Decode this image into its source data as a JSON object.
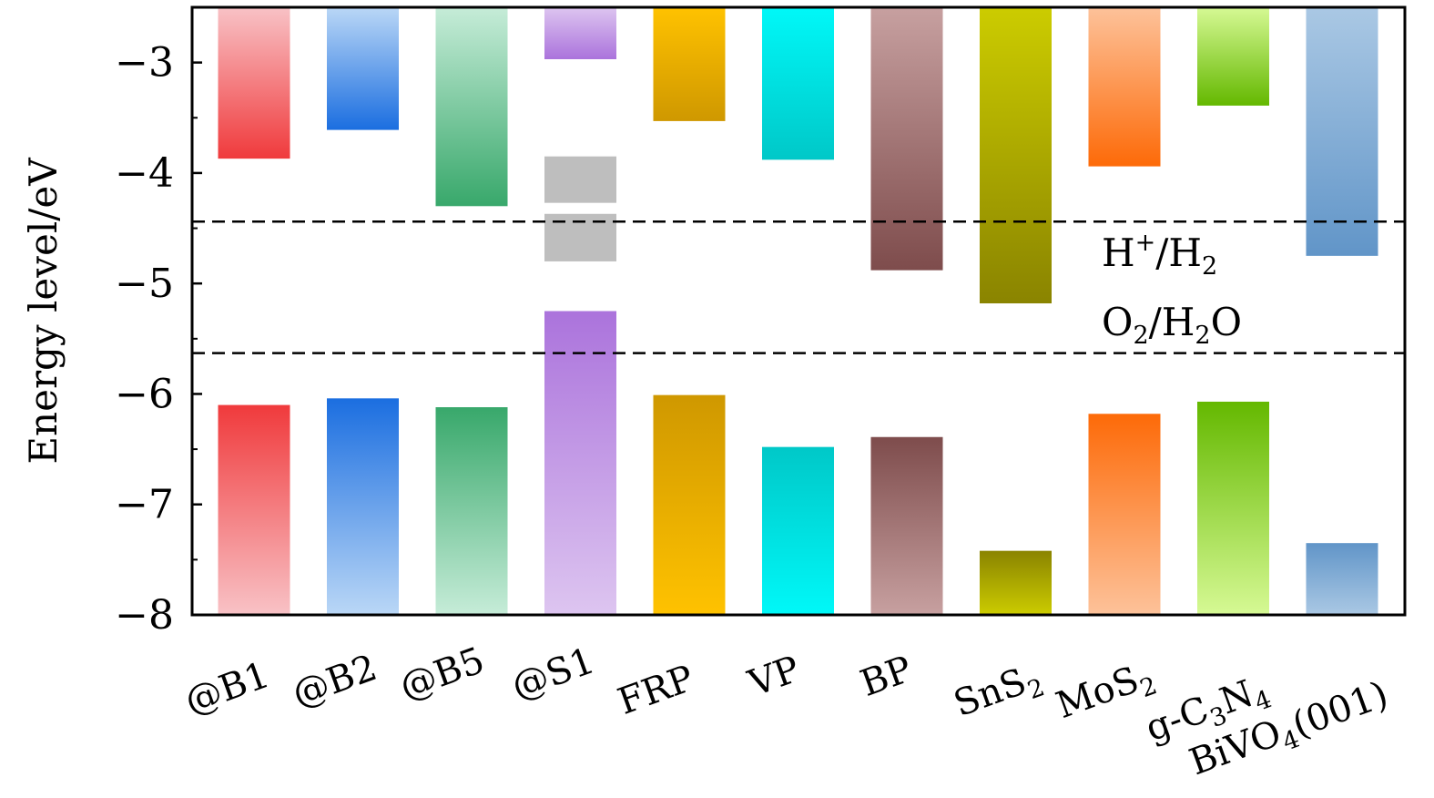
{
  "chart_data": {
    "type": "bar",
    "ylabel": "Energy level/eV",
    "ylim": [
      -8,
      -2.5
    ],
    "yticks": [
      -3,
      -4,
      -5,
      -6,
      -7,
      -8
    ],
    "ytick_labels": [
      "−3",
      "−4",
      "−5",
      "−6",
      "−7",
      "−8"
    ],
    "grid": false,
    "categories": [
      {
        "label": "@B1",
        "base": "@B1",
        "subs": []
      },
      {
        "label": "@B2",
        "base": "@B2",
        "subs": []
      },
      {
        "label": "@B5",
        "base": "@B5",
        "subs": []
      },
      {
        "label": "@S1",
        "base": "@S1",
        "subs": []
      },
      {
        "label": "FRP",
        "base": "FRP",
        "subs": []
      },
      {
        "label": "VP",
        "base": "VP",
        "subs": []
      },
      {
        "label": "BP",
        "base": "BP",
        "subs": []
      },
      {
        "label": "SnS2",
        "parts": [
          [
            "SnS",
            false
          ],
          [
            "2",
            true
          ]
        ]
      },
      {
        "label": "MoS2",
        "parts": [
          [
            "MoS",
            false
          ],
          [
            "2",
            true
          ]
        ]
      },
      {
        "label": "g-C3N4",
        "parts": [
          [
            "g-C",
            false
          ],
          [
            "3",
            true
          ],
          [
            "N",
            false
          ],
          [
            "4",
            true
          ]
        ]
      },
      {
        "label": "BiVO4(001)",
        "parts": [
          [
            "BiVO",
            false
          ],
          [
            "4",
            true
          ],
          [
            "(001)",
            false
          ]
        ]
      }
    ],
    "cbm": [
      -3.87,
      -3.61,
      -4.3,
      -2.97,
      -3.53,
      -3.88,
      -4.88,
      -5.18,
      -3.94,
      -3.39,
      -4.75
    ],
    "vbm": [
      -6.1,
      -6.04,
      -6.12,
      -5.25,
      -6.01,
      -6.48,
      -6.39,
      -7.42,
      -6.18,
      -6.07,
      -7.35
    ],
    "defect_levels": [
      {
        "category": "@S1",
        "top": -3.85,
        "bottom": -4.27
      },
      {
        "category": "@S1",
        "top": -4.37,
        "bottom": -4.8
      }
    ],
    "colors": {
      "@B1": {
        "dark": "#f03a3c",
        "light": "#f8c2c6"
      },
      "@B2": {
        "dark": "#1b6ee0",
        "light": "#bad7f6"
      },
      "@B5": {
        "dark": "#38a86b",
        "light": "#c6ecd8"
      },
      "@S1": {
        "dark": "#ab73dc",
        "light": "#ddc5f0"
      },
      "FRP": {
        "dark": "#cf9800",
        "light": "#ffc200"
      },
      "VP": {
        "dark": "#00c8c8",
        "light": "#00f8f8"
      },
      "BP": {
        "dark": "#7e4c4c",
        "light": "#c7a0a0"
      },
      "SnS2": {
        "dark": "#8a8400",
        "light": "#cccc00"
      },
      "MoS2": {
        "dark": "#fd6a08",
        "light": "#fdc29a"
      },
      "g-C3N4": {
        "dark": "#64b800",
        "light": "#d6f994"
      },
      "BiVO4(001)": {
        "dark": "#6195c8",
        "light": "#aac8e4"
      },
      "defect": "#bebebe"
    },
    "reference_lines": [
      {
        "label_parts": [
          [
            "H",
            false,
            false
          ],
          [
            "+",
            false,
            true
          ],
          [
            "/H",
            false,
            false
          ],
          [
            "2",
            true,
            false
          ]
        ],
        "value": -4.44,
        "style": "dashed"
      },
      {
        "label_parts": [
          [
            "O",
            false,
            false
          ],
          [
            "2",
            true,
            false
          ],
          [
            "/H",
            false,
            false
          ],
          [
            "2",
            true,
            false
          ],
          [
            "O",
            false,
            false
          ]
        ],
        "value": -5.63,
        "style": "dashed"
      }
    ]
  }
}
